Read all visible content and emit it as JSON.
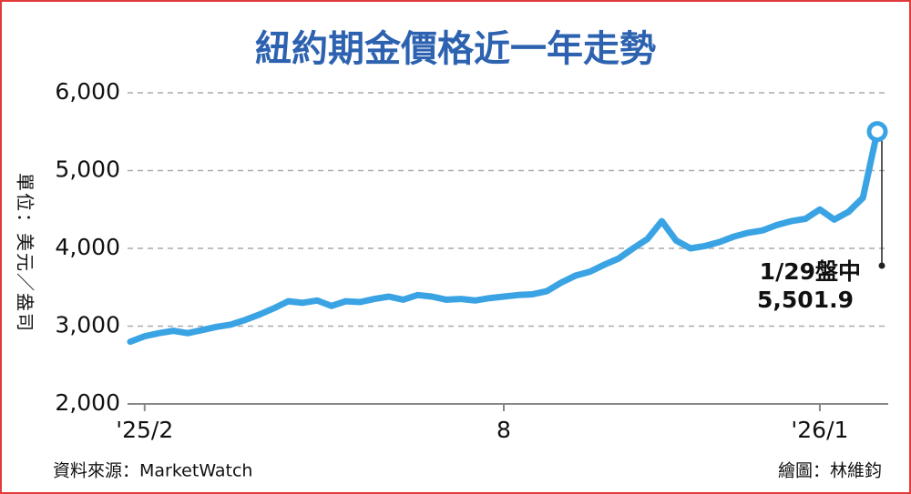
{
  "chart_data": {
    "type": "line",
    "title": "紐約期金價格近一年走勢",
    "y_label": "單位：美元／盎司",
    "source": "資料來源：MarketWatch",
    "credit": "繪圖：林維鈞",
    "annotation": "1/29盤中",
    "categories": [
      null,
      "'25/2",
      null,
      null,
      null,
      null,
      null,
      null,
      null,
      null,
      null,
      null,
      null,
      null,
      null,
      null,
      null,
      null,
      null,
      null,
      null,
      null,
      null,
      null,
      null,
      null,
      "8",
      null,
      null,
      null,
      null,
      null,
      null,
      null,
      null,
      null,
      null,
      null,
      null,
      null,
      null,
      null,
      null,
      null,
      null,
      null,
      null,
      null,
      "'26/1",
      null,
      null,
      null,
      null
    ],
    "series": [
      {
        "color": "#3aa3e3",
        "values": [
          2800,
          2870,
          2910,
          2940,
          2910,
          2950,
          2990,
          3020,
          3080,
          3150,
          3230,
          3320,
          3300,
          3330,
          3260,
          3320,
          3310,
          3350,
          3380,
          3340,
          3400,
          3380,
          3340,
          3350,
          3330,
          3360,
          3380,
          3400,
          3410,
          3450,
          3560,
          3650,
          3700,
          3790,
          3870,
          4000,
          4120,
          4350,
          4100,
          4000,
          4030,
          4080,
          4150,
          4200,
          4230,
          4300,
          4350,
          4380,
          4500,
          4370,
          4470,
          4650,
          5501.9
        ],
        "value_labels": [
          null,
          null,
          null,
          null,
          null,
          null,
          null,
          null,
          null,
          null,
          null,
          null,
          null,
          null,
          null,
          null,
          null,
          null,
          null,
          null,
          null,
          null,
          null,
          null,
          null,
          null,
          null,
          null,
          null,
          null,
          null,
          null,
          null,
          null,
          null,
          null,
          null,
          null,
          null,
          null,
          null,
          null,
          null,
          null,
          null,
          null,
          null,
          null,
          null,
          null,
          null,
          null,
          "5,501.9"
        ]
      }
    ],
    "ylim": [
      2000,
      6000
    ],
    "yticks": [
      {
        "value": 2000,
        "label": "2,000"
      },
      {
        "value": 3000,
        "label": "3,000"
      },
      {
        "value": 4000,
        "label": "4,000"
      },
      {
        "value": 5000,
        "label": "5,000"
      },
      {
        "value": 6000,
        "label": "6,000"
      }
    ],
    "grid": true
  }
}
